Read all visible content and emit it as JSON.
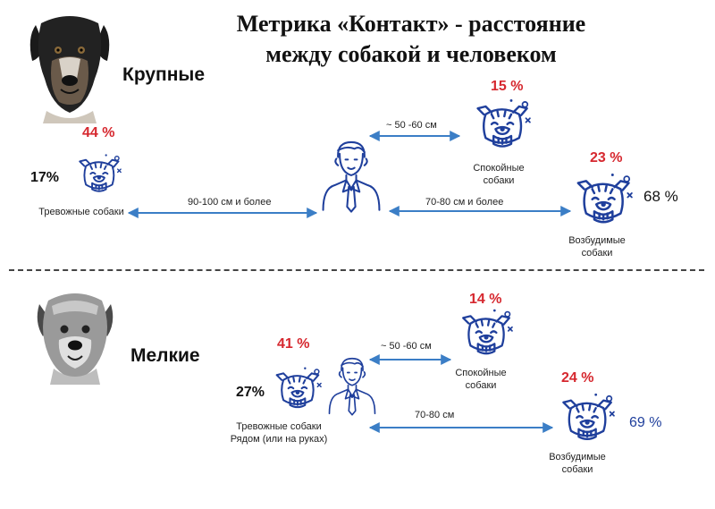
{
  "title": {
    "line1": "Метрика «Контакт»  - расстояние",
    "line2": "между собакой и человеком"
  },
  "large": {
    "label": "Крупные",
    "anxious": {
      "percent": "44 %",
      "side_percent": "17%",
      "label": "Тревожные собаки"
    },
    "calm": {
      "percent": "15 %",
      "label_line1": "Спокойные",
      "label_line2": "собаки"
    },
    "excitable": {
      "percent": "23 %",
      "side_percent": "68 %",
      "label_line1": "Возбудимые",
      "label_line2": "собаки"
    },
    "dist_calm": "~ 50 -60 см",
    "dist_anxious": "90-100 см и более",
    "dist_excitable": "70-80 см и более"
  },
  "small": {
    "label": "Мелкие",
    "anxious": {
      "percent": "41 %",
      "side_percent": "27%",
      "label_line1": "Тревожные собаки",
      "label_line2": "Рядом (или на руках)"
    },
    "calm": {
      "percent": "14 %",
      "label_line1": "Спокойные",
      "label_line2": "собаки"
    },
    "excitable": {
      "percent": "24 %",
      "side_percent": "69 %",
      "label_line1": "Возбудимые",
      "label_line2": "собаки"
    },
    "dist_calm": "~ 50 -60 см",
    "dist_excitable": "70-80 см"
  },
  "colors": {
    "accent_red": "#d6282f",
    "arrow_blue": "#3b7ec6",
    "icon_blue": "#1f3f9c",
    "text_blue": "#1f3f9c"
  },
  "icons": {
    "large_dog": "rottweiler-portrait-icon",
    "small_dog": "terrier-portrait-icon",
    "dog": "bulldog-face-icon",
    "person": "man-in-tie-icon"
  }
}
